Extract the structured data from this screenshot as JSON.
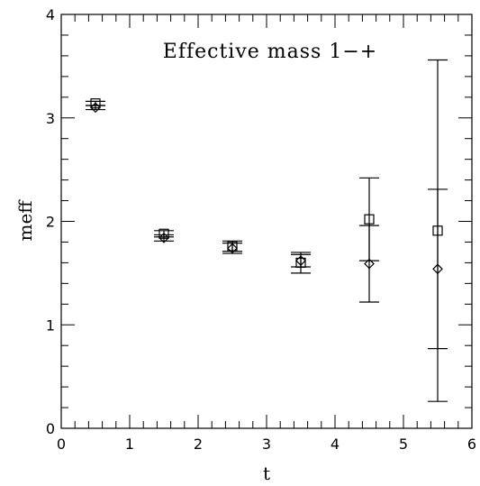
{
  "chart_data": {
    "type": "scatter",
    "title": "Effective mass 1−+",
    "xlabel": "t",
    "ylabel": "meff",
    "xlim": [
      0,
      6
    ],
    "ylim": [
      0,
      4
    ],
    "x_ticks": [
      "0",
      "1",
      "2",
      "3",
      "4",
      "5",
      "6"
    ],
    "y_ticks": [
      "0",
      "1",
      "2",
      "3",
      "4"
    ],
    "grid": false,
    "series": [
      {
        "marker": "square",
        "points": [
          {
            "x": 0.5,
            "y": 3.14,
            "err": 0.02
          },
          {
            "x": 1.5,
            "y": 1.88,
            "err": 0.03
          },
          {
            "x": 2.5,
            "y": 1.76,
            "err": 0.05
          },
          {
            "x": 3.5,
            "y": 1.6,
            "err": 0.1
          },
          {
            "x": 4.5,
            "y": 2.02,
            "err": 0.4
          },
          {
            "x": 5.5,
            "y": 1.91,
            "err": 1.65
          }
        ]
      },
      {
        "marker": "diamond",
        "points": [
          {
            "x": 0.5,
            "y": 3.1,
            "err": 0.02
          },
          {
            "x": 1.5,
            "y": 1.84,
            "err": 0.03
          },
          {
            "x": 2.5,
            "y": 1.74,
            "err": 0.05
          },
          {
            "x": 3.5,
            "y": 1.62,
            "err": 0.06
          },
          {
            "x": 4.5,
            "y": 1.59,
            "err": 0.37
          },
          {
            "x": 5.5,
            "y": 1.54,
            "err": 0.77
          }
        ]
      }
    ]
  }
}
